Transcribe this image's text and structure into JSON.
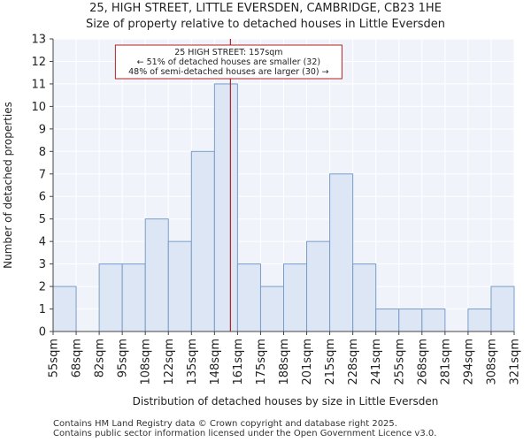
{
  "header": {
    "title": "25, HIGH STREET, LITTLE EVERSDEN, CAMBRIDGE, CB23 1HE",
    "subtitle": "Size of property relative to detached houses in Little Eversden"
  },
  "footer": {
    "line1": "Contains HM Land Registry data © Crown copyright and database right 2025.",
    "line2": "Contains public sector information licensed under the Open Government Licence v3.0."
  },
  "chart_data": {
    "type": "bar",
    "title": "Size of property relative to detached houses in Little Eversden",
    "xlabel": "Distribution of detached houses by size in Little Eversden",
    "ylabel": "Number of detached properties",
    "ylim": [
      0,
      13
    ],
    "yticks": [
      0,
      1,
      2,
      3,
      4,
      5,
      6,
      7,
      8,
      9,
      10,
      11,
      12,
      13
    ],
    "bin_edges": [
      55,
      68,
      82,
      95,
      108,
      122,
      135,
      148,
      161,
      175,
      188,
      201,
      215,
      228,
      241,
      255,
      268,
      281,
      294,
      308,
      321
    ],
    "tick_labels": [
      "55sqm",
      "68sqm",
      "82sqm",
      "95sqm",
      "108sqm",
      "122sqm",
      "135sqm",
      "148sqm",
      "161sqm",
      "175sqm",
      "188sqm",
      "201sqm",
      "215sqm",
      "228sqm",
      "241sqm",
      "255sqm",
      "268sqm",
      "281sqm",
      "294sqm",
      "308sqm",
      "321sqm"
    ],
    "values": [
      2,
      0,
      3,
      3,
      5,
      4,
      8,
      11,
      3,
      2,
      3,
      4,
      7,
      3,
      1,
      1,
      1,
      0,
      1,
      2
    ],
    "grid": true,
    "marker": {
      "value": 157,
      "label_lines": [
        "25 HIGH STREET: 157sqm",
        "← 51% of detached houses are smaller (32)",
        "48% of semi-detached houses are larger (30) →"
      ]
    },
    "colors": {
      "bar_fill": "#dce6f5",
      "bar_stroke": "#7a9cc8",
      "marker": "#b22222",
      "plot_bg": "#f0f4fa",
      "grid": "#ffffff"
    }
  }
}
